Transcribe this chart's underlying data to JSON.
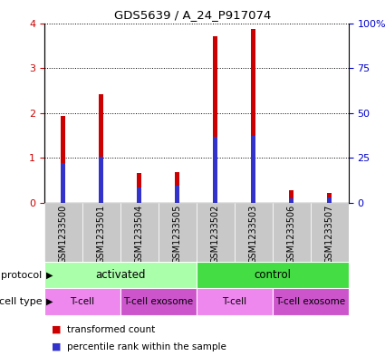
{
  "title": "GDS5639 / A_24_P917074",
  "samples": [
    "GSM1233500",
    "GSM1233501",
    "GSM1233504",
    "GSM1233505",
    "GSM1233502",
    "GSM1233503",
    "GSM1233506",
    "GSM1233507"
  ],
  "red_values": [
    1.93,
    2.42,
    0.67,
    0.68,
    3.7,
    3.87,
    0.28,
    0.22
  ],
  "blue_values": [
    0.88,
    1.02,
    0.35,
    0.38,
    1.48,
    1.5,
    0.1,
    0.12
  ],
  "ylim_left": [
    0,
    4
  ],
  "ylim_right": [
    0,
    100
  ],
  "yticks_left": [
    0,
    1,
    2,
    3,
    4
  ],
  "yticks_right": [
    0,
    25,
    50,
    75,
    100
  ],
  "yticklabels_right": [
    "0",
    "25",
    "50",
    "75",
    "100%"
  ],
  "bar_width": 0.12,
  "red_color": "#CC0000",
  "blue_color": "#3333CC",
  "protocol_groups": [
    {
      "label": "activated",
      "start": 0,
      "end": 4,
      "color": "#AAFFAA"
    },
    {
      "label": "control",
      "start": 4,
      "end": 8,
      "color": "#44DD44"
    }
  ],
  "cell_type_groups": [
    {
      "label": "T-cell",
      "start": 0,
      "end": 2,
      "color": "#EE88EE"
    },
    {
      "label": "T-cell exosome",
      "start": 2,
      "end": 4,
      "color": "#CC55CC"
    },
    {
      "label": "T-cell",
      "start": 4,
      "end": 6,
      "color": "#EE88EE"
    },
    {
      "label": "T-cell exosome",
      "start": 6,
      "end": 8,
      "color": "#CC55CC"
    }
  ],
  "legend_red": "transformed count",
  "legend_blue": "percentile rank within the sample",
  "xtick_bg_color": "#C8C8C8",
  "plot_bg_color": "#FFFFFF",
  "left_tick_color": "#CC0000",
  "right_tick_color": "#0000CC"
}
